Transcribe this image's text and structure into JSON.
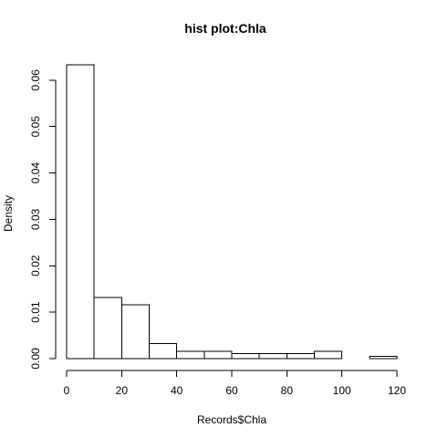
{
  "chart_data": {
    "type": "bar",
    "title": "hist plot:Chla",
    "xlabel": "Records$Chla",
    "ylabel": "Density",
    "bins": [
      {
        "x0": 0,
        "x1": 10,
        "density": 0.0633
      },
      {
        "x0": 10,
        "x1": 20,
        "density": 0.0132
      },
      {
        "x0": 20,
        "x1": 30,
        "density": 0.0116
      },
      {
        "x0": 30,
        "x1": 40,
        "density": 0.0032
      },
      {
        "x0": 40,
        "x1": 50,
        "density": 0.0016
      },
      {
        "x0": 50,
        "x1": 60,
        "density": 0.0016
      },
      {
        "x0": 60,
        "x1": 70,
        "density": 0.0011
      },
      {
        "x0": 70,
        "x1": 80,
        "density": 0.0011
      },
      {
        "x0": 80,
        "x1": 90,
        "density": 0.0011
      },
      {
        "x0": 90,
        "x1": 100,
        "density": 0.0016
      },
      {
        "x0": 100,
        "x1": 110,
        "density": 0.0
      },
      {
        "x0": 110,
        "x1": 120,
        "density": 0.0005
      }
    ],
    "xlim": [
      0,
      120
    ],
    "ylim": [
      0,
      0.0633
    ],
    "x_ticks": [
      0,
      20,
      40,
      60,
      80,
      100,
      120
    ],
    "x_tick_labels": [
      "0",
      "20",
      "40",
      "60",
      "80",
      "100",
      "120"
    ],
    "y_ticks": [
      0,
      0.01,
      0.02,
      0.03,
      0.04,
      0.05,
      0.06
    ],
    "y_tick_labels": [
      "0.00",
      "0.01",
      "0.02",
      "0.03",
      "0.04",
      "0.05",
      "0.06"
    ],
    "grid": false,
    "legend": "none",
    "bar_fill": "#ffffff",
    "bar_stroke": "#000000"
  }
}
